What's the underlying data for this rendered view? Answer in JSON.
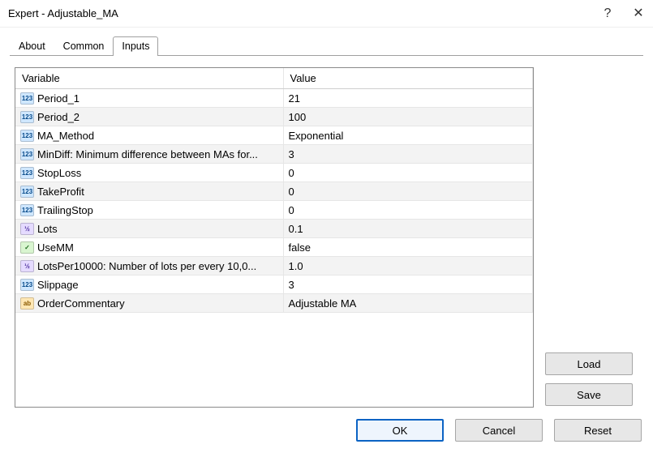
{
  "window": {
    "title": "Expert - Adjustable_MA"
  },
  "tabs": {
    "about": "About",
    "common": "Common",
    "inputs": "Inputs",
    "active": "inputs"
  },
  "table": {
    "headers": {
      "variable": "Variable",
      "value": "Value"
    },
    "rows": [
      {
        "iconType": "int",
        "iconText": "123",
        "name": "Period_1",
        "value": "21"
      },
      {
        "iconType": "int",
        "iconText": "123",
        "name": "Period_2",
        "value": "100"
      },
      {
        "iconType": "int",
        "iconText": "123",
        "name": "MA_Method",
        "value": "Exponential"
      },
      {
        "iconType": "int",
        "iconText": "123",
        "name": "MinDiff: Minimum difference between MAs for...",
        "value": "3"
      },
      {
        "iconType": "int",
        "iconText": "123",
        "name": "StopLoss",
        "value": "0"
      },
      {
        "iconType": "int",
        "iconText": "123",
        "name": "TakeProfit",
        "value": "0"
      },
      {
        "iconType": "int",
        "iconText": "123",
        "name": "TrailingStop",
        "value": "0"
      },
      {
        "iconType": "double",
        "iconText": "½",
        "name": "Lots",
        "value": "0.1"
      },
      {
        "iconType": "bool",
        "iconText": "✓",
        "name": "UseMM",
        "value": "false"
      },
      {
        "iconType": "double",
        "iconText": "½",
        "name": "LotsPer10000: Number of lots per every 10,0...",
        "value": "1.0"
      },
      {
        "iconType": "int",
        "iconText": "123",
        "name": "Slippage",
        "value": "3"
      },
      {
        "iconType": "string",
        "iconText": "ab",
        "name": "OrderCommentary",
        "value": "Adjustable MA"
      }
    ]
  },
  "buttons": {
    "load": "Load",
    "save": "Save",
    "ok": "OK",
    "cancel": "Cancel",
    "reset": "Reset"
  },
  "colors": {
    "grid_border": "#8a8a8a",
    "row_alt": "#f3f3f3",
    "primary_border": "#0b63c4"
  }
}
